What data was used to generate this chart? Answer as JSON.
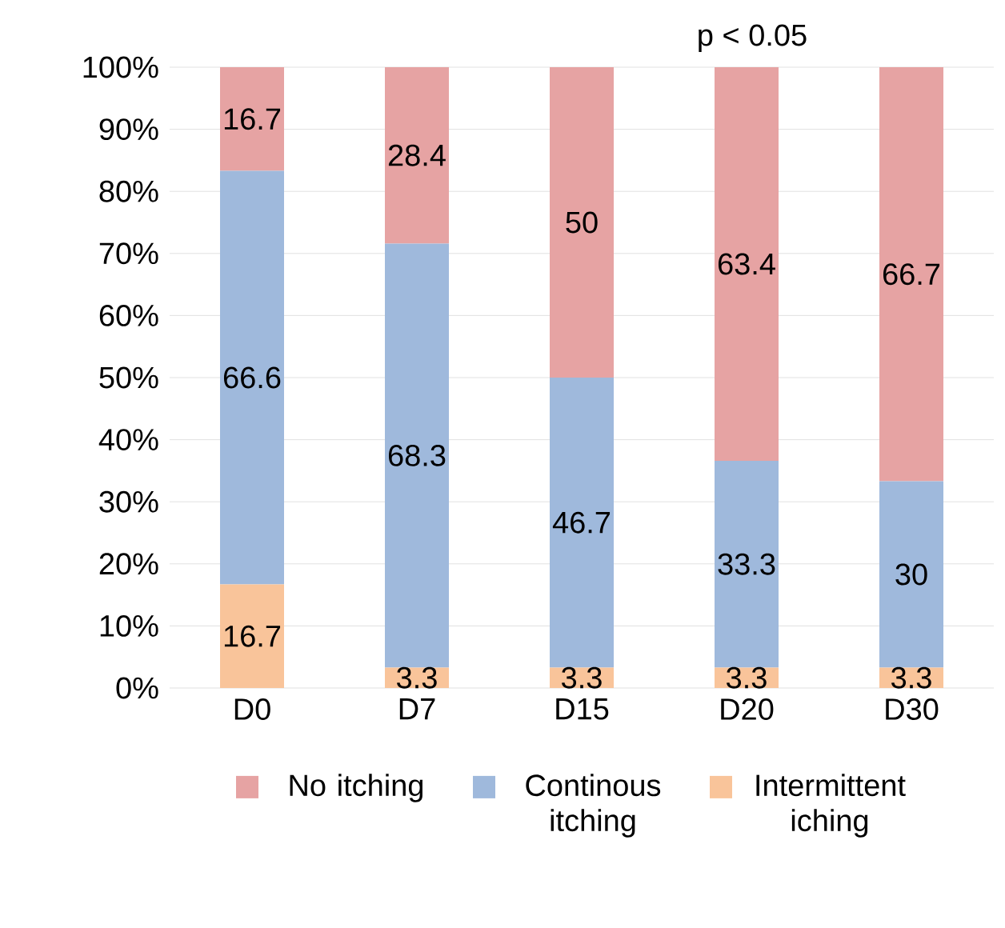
{
  "chart_data": {
    "type": "bar",
    "stacked": true,
    "categories": [
      "D0",
      "D7",
      "D15",
      "D20",
      "D30"
    ],
    "series": [
      {
        "name": "Intermittent iching",
        "color": "#f9c49a",
        "values": [
          16.7,
          3.3,
          3.3,
          3.3,
          3.3
        ]
      },
      {
        "name": "Continous itching",
        "color": "#9fb9dc",
        "values": [
          66.6,
          68.3,
          46.7,
          33.3,
          30
        ]
      },
      {
        "name": "No itching",
        "color": "#e6a3a3",
        "values": [
          16.7,
          28.4,
          50,
          63.4,
          66.7
        ]
      }
    ],
    "ylim": [
      0,
      100
    ],
    "yticks": [
      {
        "value": 0,
        "label": "0%"
      },
      {
        "value": 10,
        "label": "10%"
      },
      {
        "value": 20,
        "label": "20%"
      },
      {
        "value": 30,
        "label": "30%"
      },
      {
        "value": 40,
        "label": "40%"
      },
      {
        "value": 50,
        "label": "50%"
      },
      {
        "value": 60,
        "label": "60%"
      },
      {
        "value": 70,
        "label": "70%"
      },
      {
        "value": 80,
        "label": "80%"
      },
      {
        "value": 90,
        "label": "90%"
      },
      {
        "value": 100,
        "label": "100%"
      }
    ],
    "grid": "y",
    "legend": "bottom",
    "data_labels": true,
    "annotations": [
      "p < 0.05"
    ]
  }
}
